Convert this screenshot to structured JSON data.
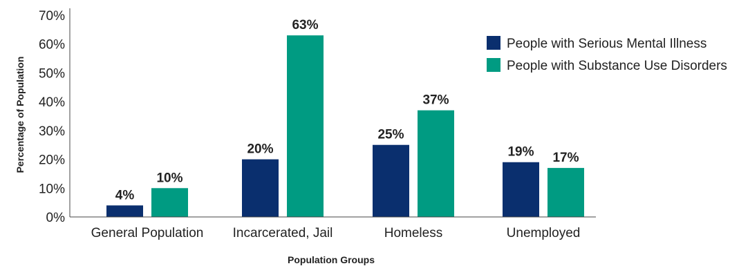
{
  "chart_data": {
    "type": "bar",
    "title": "",
    "xlabel": "Population Groups",
    "ylabel": "Percentage of Population",
    "ylim": [
      0,
      70
    ],
    "yticks": [
      0,
      10,
      20,
      30,
      40,
      50,
      60,
      70
    ],
    "ytick_labels": [
      "0%",
      "10%",
      "20%",
      "30%",
      "40%",
      "50%",
      "60%",
      "70%"
    ],
    "categories": [
      "General Population",
      "Incarcerated, Jail",
      "Homeless",
      "Unemployed"
    ],
    "series": [
      {
        "name": "People with Serious Mental Illness",
        "color": "#0a2f6e",
        "values": [
          4,
          20,
          25,
          19
        ],
        "labels": [
          "4%",
          "20%",
          "25%",
          "19%"
        ]
      },
      {
        "name": "People with Substance Use Disorders",
        "color": "#009b82",
        "values": [
          10,
          63,
          37,
          17
        ],
        "labels": [
          "10%",
          "63%",
          "37%",
          "17%"
        ]
      }
    ],
    "legend_position": "top-right",
    "grid": false
  }
}
